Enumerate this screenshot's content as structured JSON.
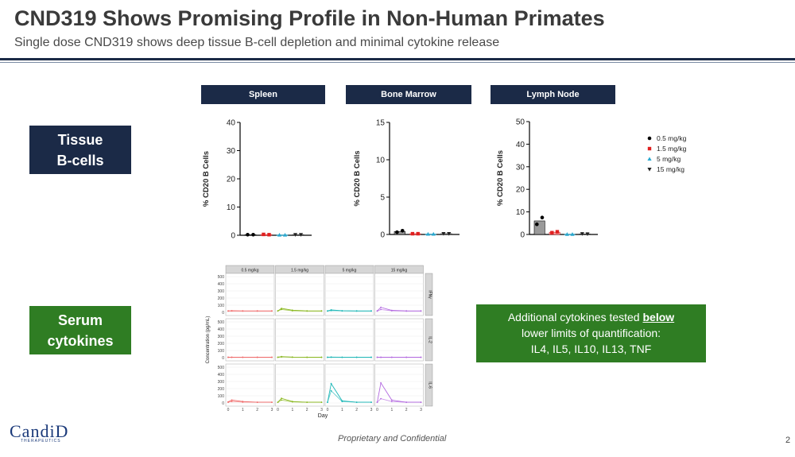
{
  "slide": {
    "title": "CND319 Shows Promising Profile in Non-Human Primates",
    "subtitle": "Single dose CND319 shows deep tissue B-cell depletion and minimal cytokine release",
    "footer": "Proprietary and Confidential",
    "page_number": "2",
    "logo_text": "CandiD",
    "logo_subtext": "THERAPEUTICS"
  },
  "sections": {
    "tissue": {
      "line1": "Tissue",
      "line2": "B-cells"
    },
    "serum": {
      "line1": "Serum",
      "line2": "cytokines"
    }
  },
  "callout": {
    "line1_pre": "Additional cytokines tested",
    "line1_bold": "below",
    "line2": "lower limits of quantification:",
    "line3": "IL4, IL5, IL10, IL13, TNF"
  },
  "colors": {
    "navy": "#1b2a47",
    "green": "#2f7d23",
    "dose_0_5": "#000000",
    "dose_1_5": "#e02020",
    "dose_5": "#29a8cf",
    "dose_15": "#222222"
  },
  "chart_data": [
    {
      "type": "bar",
      "title": "Spleen",
      "ylabel": "% CD20 B Cells",
      "ylim": [
        0,
        40
      ],
      "yticks": [
        "0",
        "10",
        "20",
        "30",
        "40"
      ],
      "series": [
        {
          "name": "0.5 mg/kg",
          "values": [
            0.2,
            0.2
          ]
        },
        {
          "name": "1.5 mg/kg",
          "values": [
            0.3,
            0.2
          ]
        },
        {
          "name": "5 mg/kg",
          "values": [
            0.1,
            0.1
          ]
        },
        {
          "name": "15 mg/kg",
          "values": [
            0.2,
            0.2
          ]
        }
      ]
    },
    {
      "type": "bar",
      "title": "Bone Marrow",
      "ylabel": "% CD20 B Cells",
      "ylim": [
        0,
        15
      ],
      "yticks": [
        "0",
        "5",
        "10",
        "15"
      ],
      "series": [
        {
          "name": "0.5 mg/kg",
          "values": [
            0.3,
            0.5
          ]
        },
        {
          "name": "1.5 mg/kg",
          "values": [
            0.1,
            0.1
          ]
        },
        {
          "name": "5 mg/kg",
          "values": [
            0.05,
            0.05
          ]
        },
        {
          "name": "15 mg/kg",
          "values": [
            0.1,
            0.1
          ]
        }
      ]
    },
    {
      "type": "bar",
      "title": "Lymph Node",
      "ylabel": "% CD20 B Cells",
      "ylim": [
        0,
        50
      ],
      "yticks": [
        "0",
        "10",
        "20",
        "30",
        "40",
        "50"
      ],
      "series": [
        {
          "name": "0.5 mg/kg",
          "values": [
            4.5,
            7.5
          ]
        },
        {
          "name": "1.5 mg/kg",
          "values": [
            0.8,
            1.2
          ]
        },
        {
          "name": "5 mg/kg",
          "values": [
            0.1,
            0.1
          ]
        },
        {
          "name": "15 mg/kg",
          "values": [
            0.3,
            0.2
          ]
        }
      ],
      "legend": {
        "position": "right",
        "entries": [
          "0.5 mg/kg",
          "1.5 mg/kg",
          "5 mg/kg",
          "15 mg/kg"
        ]
      }
    },
    {
      "type": "line",
      "title": "",
      "xlabel": "Day",
      "ylabel": "Concentration (pg/mL)",
      "x": [
        0,
        0.25,
        1,
        2,
        3
      ],
      "xticks": [
        "0",
        "1",
        "2",
        "3"
      ],
      "ylim": [
        0,
        500
      ],
      "yticks": [
        "0",
        "100",
        "200",
        "300",
        "400",
        "500"
      ],
      "columns": [
        "0.5 mg/kg",
        "1.5 mg/kg",
        "5 mg/kg",
        "15 mg/kg"
      ],
      "rows": [
        "IFNγ",
        "IL-2",
        "IL-6"
      ],
      "column_colors": [
        "#f06a6a",
        "#8ab820",
        "#1fb8b8",
        "#b36ae0"
      ],
      "panels": [
        [
          {
            "lines": [
              [
                20,
                22,
                20,
                20,
                20
              ],
              [
                18,
                20,
                18,
                18,
                18
              ]
            ]
          },
          {
            "lines": [
              [
                20,
                55,
                30,
                20,
                20
              ],
              [
                20,
                40,
                22,
                18,
                18
              ]
            ]
          },
          {
            "lines": [
              [
                20,
                35,
                22,
                20,
                20
              ],
              [
                18,
                25,
                20,
                18,
                18
              ]
            ]
          },
          {
            "lines": [
              [
                20,
                70,
                28,
                20,
                20
              ],
              [
                18,
                40,
                22,
                18,
                18
              ]
            ]
          }
        ],
        [
          {
            "lines": [
              [
                5,
                5,
                5,
                5,
                5
              ],
              [
                5,
                5,
                5,
                5,
                5
              ]
            ]
          },
          {
            "lines": [
              [
                5,
                15,
                8,
                5,
                5
              ],
              [
                5,
                10,
                6,
                5,
                5
              ]
            ]
          },
          {
            "lines": [
              [
                5,
                8,
                5,
                5,
                5
              ],
              [
                5,
                6,
                5,
                5,
                5
              ]
            ]
          },
          {
            "lines": [
              [
                5,
                5,
                5,
                5,
                5
              ],
              [
                5,
                5,
                5,
                5,
                5
              ]
            ]
          }
        ],
        [
          {
            "lines": [
              [
                15,
                40,
                20,
                10,
                10
              ],
              [
                10,
                20,
                12,
                10,
                10
              ]
            ]
          },
          {
            "lines": [
              [
                10,
                65,
                20,
                10,
                10
              ],
              [
                10,
                40,
                15,
                10,
                10
              ]
            ]
          },
          {
            "lines": [
              [
                10,
                270,
                30,
                10,
                10
              ],
              [
                10,
                170,
                20,
                10,
                10
              ]
            ]
          },
          {
            "lines": [
              [
                10,
                280,
                40,
                10,
                10
              ],
              [
                10,
                60,
                20,
                10,
                10
              ]
            ]
          }
        ]
      ]
    }
  ]
}
